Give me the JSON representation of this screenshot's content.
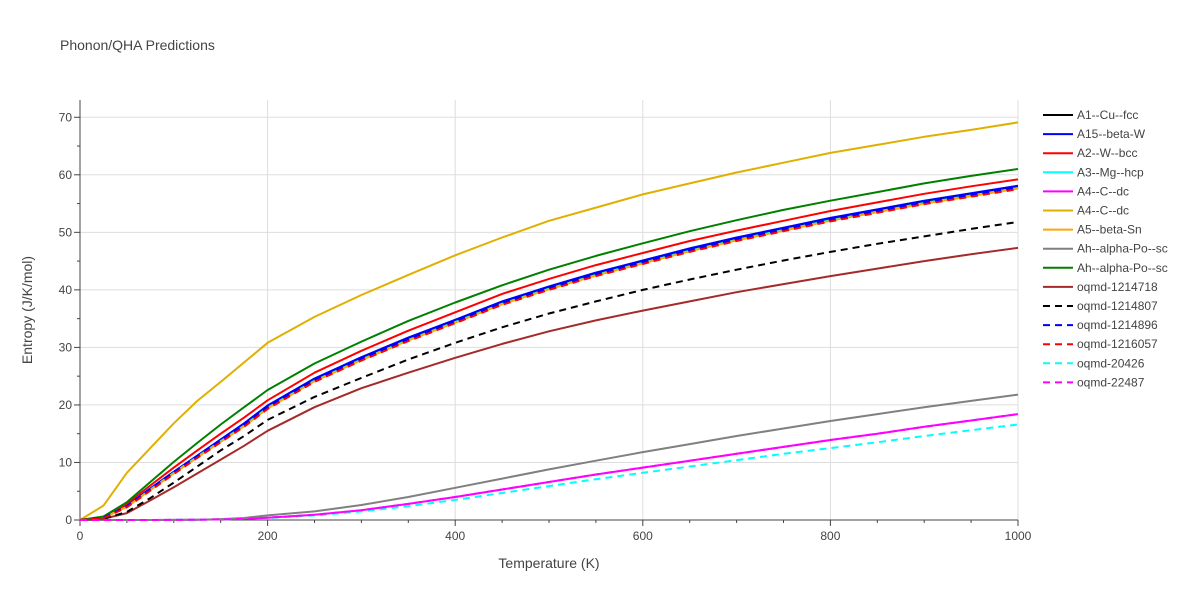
{
  "chart_data": {
    "type": "line",
    "title": "Phonon/QHA Predictions",
    "xlabel": "Temperature (K)",
    "ylabel": "Entropy (J/K/mol)",
    "xlim": [
      0,
      1000
    ],
    "ylim": [
      0,
      73
    ],
    "xticks": [
      0,
      200,
      400,
      600,
      800,
      1000
    ],
    "yticks": [
      0,
      10,
      20,
      30,
      40,
      50,
      60,
      70
    ],
    "grid": true,
    "legend_position": "right",
    "x": [
      0,
      25,
      50,
      75,
      100,
      125,
      150,
      175,
      200,
      250,
      300,
      350,
      400,
      450,
      500,
      550,
      600,
      650,
      700,
      750,
      800,
      850,
      900,
      950,
      1000
    ],
    "series": [
      {
        "name": "A1--Cu--fcc",
        "color": "#000000",
        "dash": "solid",
        "values": [
          0,
          0.4,
          2.4,
          5.4,
          8.3,
          11.1,
          13.8,
          16.5,
          19.6,
          24.3,
          28.0,
          31.4,
          34.5,
          37.7,
          40.3,
          42.7,
          44.8,
          46.9,
          48.8,
          50.5,
          52.2,
          53.7,
          55.2,
          56.5,
          57.8
        ]
      },
      {
        "name": "A15--beta-W",
        "color": "#0000ff",
        "dash": "solid",
        "values": [
          0,
          0.4,
          2.5,
          5.5,
          8.4,
          11.2,
          14.0,
          16.8,
          19.9,
          24.6,
          28.3,
          31.7,
          34.8,
          38.0,
          40.6,
          43.0,
          45.1,
          47.2,
          49.1,
          50.8,
          52.5,
          54.0,
          55.5,
          56.8,
          58.1
        ]
      },
      {
        "name": "A2--W--bcc",
        "color": "#ff0000",
        "dash": "solid",
        "values": [
          0,
          0.5,
          2.8,
          6.0,
          9.1,
          12.1,
          15.0,
          17.8,
          20.8,
          25.6,
          29.4,
          32.9,
          36.1,
          39.3,
          41.9,
          44.3,
          46.4,
          48.5,
          50.3,
          52.0,
          53.7,
          55.2,
          56.7,
          58.0,
          59.2
        ]
      },
      {
        "name": "A3--Mg--hcp",
        "color": "#00ffff",
        "dash": "solid",
        "values": [
          0,
          0.4,
          2.3,
          5.3,
          8.2,
          11.0,
          13.7,
          16.4,
          19.5,
          24.2,
          27.9,
          31.3,
          34.4,
          37.6,
          40.2,
          42.6,
          44.7,
          46.8,
          48.7,
          50.4,
          52.1,
          53.6,
          55.1,
          56.4,
          57.7
        ]
      },
      {
        "name": "A4--C--dc",
        "color": "#ff00ff",
        "dash": "solid",
        "values": [
          0,
          0,
          0,
          0,
          0.02,
          0.05,
          0.1,
          0.2,
          0.4,
          0.9,
          1.7,
          2.8,
          4.0,
          5.3,
          6.6,
          7.9,
          9.1,
          10.3,
          11.5,
          12.7,
          13.9,
          15.0,
          16.2,
          17.3,
          18.4
        ]
      },
      {
        "name": "A4--C--dc",
        "color": "#e0b000",
        "dash": "solid",
        "values": [
          0,
          2.5,
          8.2,
          12.5,
          16.8,
          20.7,
          24.0,
          27.4,
          30.8,
          35.3,
          39.1,
          42.6,
          46.0,
          49.1,
          52.0,
          54.3,
          56.6,
          58.5,
          60.4,
          62.1,
          63.8,
          65.2,
          66.6,
          67.8,
          69.1
        ]
      },
      {
        "name": "A5--beta-Sn",
        "color": "#ffa500",
        "dash": "solid",
        "values": [
          0,
          0.4,
          2.3,
          5.2,
          8.1,
          10.9,
          13.6,
          16.3,
          19.4,
          24.1,
          27.8,
          31.2,
          34.3,
          37.5,
          40.1,
          42.5,
          44.6,
          46.7,
          48.6,
          50.3,
          52.0,
          53.5,
          55.0,
          56.3,
          57.6
        ]
      },
      {
        "name": "Ah--alpha-Po--sc",
        "color": "#808080",
        "dash": "solid",
        "values": [
          0,
          0,
          0,
          0,
          0.02,
          0.05,
          0.15,
          0.35,
          0.8,
          1.5,
          2.6,
          4.0,
          5.6,
          7.2,
          8.8,
          10.3,
          11.8,
          13.2,
          14.6,
          15.9,
          17.2,
          18.4,
          19.6,
          20.7,
          21.8
        ]
      },
      {
        "name": "Ah--alpha-Po--sc",
        "color": "#008000",
        "dash": "solid",
        "values": [
          0,
          0.6,
          3.1,
          6.6,
          10.1,
          13.4,
          16.6,
          19.6,
          22.6,
          27.2,
          31.0,
          34.6,
          37.8,
          40.8,
          43.5,
          45.9,
          48.1,
          50.2,
          52.1,
          53.9,
          55.5,
          57.0,
          58.5,
          59.8,
          61.0
        ]
      },
      {
        "name": "oqmd-1214718",
        "color": "#a52a2a",
        "dash": "solid",
        "values": [
          0,
          0.2,
          1.2,
          3.4,
          5.7,
          8.1,
          10.5,
          12.9,
          15.5,
          19.6,
          22.9,
          25.6,
          28.2,
          30.6,
          32.8,
          34.7,
          36.4,
          38.0,
          39.6,
          41.0,
          42.4,
          43.7,
          45.0,
          46.2,
          47.3
        ]
      },
      {
        "name": "oqmd-1214807",
        "color": "#000000",
        "dash": "dash",
        "values": [
          0,
          0.2,
          1.4,
          3.8,
          6.5,
          9.3,
          12.1,
          14.6,
          17.4,
          21.4,
          24.7,
          27.9,
          30.8,
          33.5,
          35.9,
          38.0,
          40.0,
          41.8,
          43.5,
          45.1,
          46.6,
          48.0,
          49.3,
          50.6,
          51.8
        ]
      },
      {
        "name": "oqmd-1214896",
        "color": "#0000ff",
        "dash": "dash",
        "values": [
          0,
          0.4,
          2.4,
          5.4,
          8.3,
          11.1,
          13.8,
          16.5,
          19.6,
          24.3,
          28.0,
          31.4,
          34.5,
          37.7,
          40.3,
          42.7,
          44.8,
          46.9,
          48.8,
          50.5,
          52.2,
          53.7,
          55.2,
          56.5,
          57.8
        ]
      },
      {
        "name": "oqmd-1216057",
        "color": "#ff0000",
        "dash": "dash",
        "values": [
          0,
          0.3,
          2.2,
          5.1,
          8.0,
          10.8,
          13.5,
          16.2,
          19.3,
          24.0,
          27.7,
          31.1,
          34.2,
          37.4,
          40.0,
          42.4,
          44.5,
          46.6,
          48.5,
          50.2,
          51.9,
          53.4,
          54.9,
          56.2,
          57.5
        ]
      },
      {
        "name": "oqmd-20426",
        "color": "#00ffff",
        "dash": "dash",
        "values": [
          0,
          0,
          0,
          0,
          0.02,
          0.05,
          0.1,
          0.2,
          0.35,
          0.8,
          1.5,
          2.4,
          3.5,
          4.7,
          5.9,
          7.1,
          8.2,
          9.3,
          10.4,
          11.5,
          12.5,
          13.5,
          14.6,
          15.6,
          16.6
        ]
      },
      {
        "name": "oqmd-22487",
        "color": "#ff00ff",
        "dash": "dash",
        "values": [
          0,
          0,
          0,
          0,
          0.02,
          0.05,
          0.1,
          0.2,
          0.4,
          0.9,
          1.7,
          2.8,
          4.0,
          5.3,
          6.6,
          7.9,
          9.1,
          10.3,
          11.5,
          12.7,
          13.9,
          15.0,
          16.2,
          17.3,
          18.4
        ]
      }
    ]
  }
}
